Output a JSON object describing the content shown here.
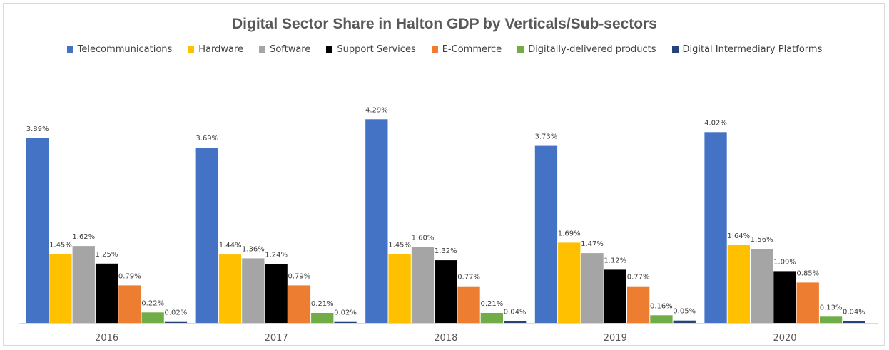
{
  "chart_data": {
    "type": "bar",
    "title": "Digital Sector Share in Halton GDP by Verticals/Sub-sectors",
    "categories": [
      "2016",
      "2017",
      "2018",
      "2019",
      "2020"
    ],
    "series": [
      {
        "name": "Telecommunications",
        "color": "#4472C4",
        "values": [
          3.89,
          3.69,
          4.29,
          3.73,
          4.02
        ],
        "labels": [
          "3.89%",
          "3.69%",
          "4.29%",
          "3.73%",
          "4.02%"
        ]
      },
      {
        "name": "Hardware",
        "color": "#FFC000",
        "values": [
          1.45,
          1.44,
          1.45,
          1.69,
          1.64
        ],
        "labels": [
          "1.45%",
          "1.44%",
          "1.45%",
          "1.69%",
          "1.64%"
        ]
      },
      {
        "name": "Software",
        "color": "#A5A5A5",
        "values": [
          1.62,
          1.36,
          1.6,
          1.47,
          1.56
        ],
        "labels": [
          "1.62%",
          "1.36%",
          "1.60%",
          "1.47%",
          "1.56%"
        ]
      },
      {
        "name": "Support Services",
        "color": "#000000",
        "values": [
          1.25,
          1.24,
          1.32,
          1.12,
          1.09
        ],
        "labels": [
          "1.25%",
          "1.24%",
          "1.32%",
          "1.12%",
          "1.09%"
        ]
      },
      {
        "name": "E-Commerce",
        "color": "#ED7D31",
        "values": [
          0.79,
          0.79,
          0.77,
          0.77,
          0.85
        ],
        "labels": [
          "0.79%",
          "0.79%",
          "0.77%",
          "0.77%",
          "0.85%"
        ]
      },
      {
        "name": "Digitally-delivered products",
        "color": "#70AD47",
        "values": [
          0.22,
          0.21,
          0.21,
          0.16,
          0.13
        ],
        "labels": [
          "0.22%",
          "0.21%",
          "0.21%",
          "0.16%",
          "0.13%"
        ]
      },
      {
        "name": "Digital Intermediary Platforms",
        "color": "#264478",
        "values": [
          0.02,
          0.02,
          0.04,
          0.05,
          0.04
        ],
        "labels": [
          "0.02%",
          "0.02%",
          "0.04%",
          "0.05%",
          "0.04%"
        ]
      }
    ],
    "ylim": [
      0,
      4.6
    ],
    "grid": false,
    "legend_position": "top"
  }
}
